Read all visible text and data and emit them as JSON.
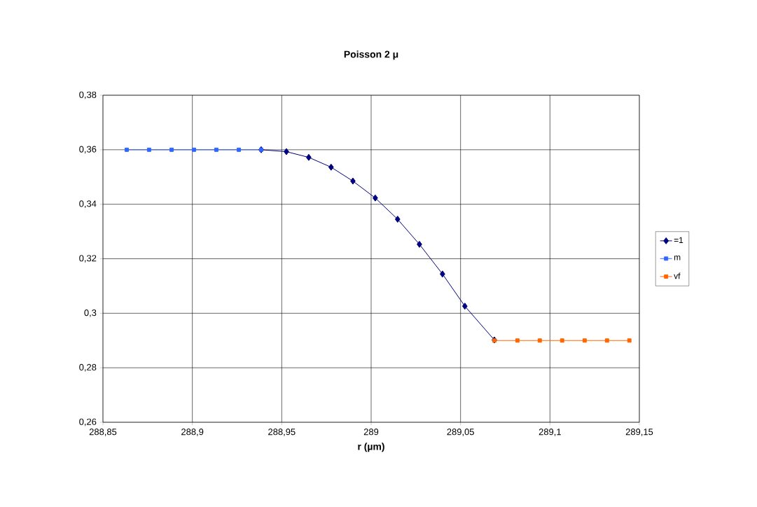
{
  "chart_data": {
    "type": "line",
    "title": "Poisson 2 μ",
    "xlabel": "r (µm)",
    "xlim": [
      288.85,
      289.15
    ],
    "xticks": [
      {
        "value": 288.85,
        "label": "288,85"
      },
      {
        "value": 288.9,
        "label": "288,9"
      },
      {
        "value": 288.95,
        "label": "288,95"
      },
      {
        "value": 289,
        "label": "289"
      },
      {
        "value": 289.05,
        "label": "289,05"
      },
      {
        "value": 289.1,
        "label": "289,1"
      },
      {
        "value": 289.15,
        "label": "289,15"
      }
    ],
    "ylim": [
      0.26,
      0.38
    ],
    "yticks": [
      {
        "value": 0.26,
        "label": "0,26"
      },
      {
        "value": 0.28,
        "label": "0,28"
      },
      {
        "value": 0.3,
        "label": "0,3"
      },
      {
        "value": 0.32,
        "label": "0,32"
      },
      {
        "value": 0.34,
        "label": "0,34"
      },
      {
        "value": 0.36,
        "label": "0,36"
      },
      {
        "value": 0.38,
        "label": "0,38"
      }
    ],
    "grid": true,
    "legend": "right",
    "series": [
      {
        "name": "=1",
        "color": "#000080",
        "marker": "diamond",
        "x": [
          288.9385,
          288.9526,
          288.9651,
          288.9776,
          288.9898,
          289.0023,
          289.0148,
          289.027,
          289.0399,
          289.0524,
          289.0689
        ],
        "values": [
          0.36,
          0.3593,
          0.3572,
          0.3536,
          0.3485,
          0.3423,
          0.3345,
          0.3253,
          0.3144,
          0.3026,
          0.2902
        ]
      },
      {
        "name": "m",
        "color": "#3366ff",
        "marker": "square",
        "x": [
          288.8633,
          288.8758,
          288.8884,
          288.9009,
          288.9134,
          288.926,
          288.9385
        ],
        "values": [
          0.36,
          0.36,
          0.36,
          0.36,
          0.36,
          0.36,
          0.36
        ]
      },
      {
        "name": "vf",
        "color": "#ff6600",
        "marker": "square",
        "x": [
          289.0689,
          289.0818,
          289.0943,
          289.1068,
          289.1194,
          289.1319,
          289.1444
        ],
        "values": [
          0.29,
          0.29,
          0.29,
          0.29,
          0.29,
          0.29,
          0.29
        ]
      }
    ]
  }
}
